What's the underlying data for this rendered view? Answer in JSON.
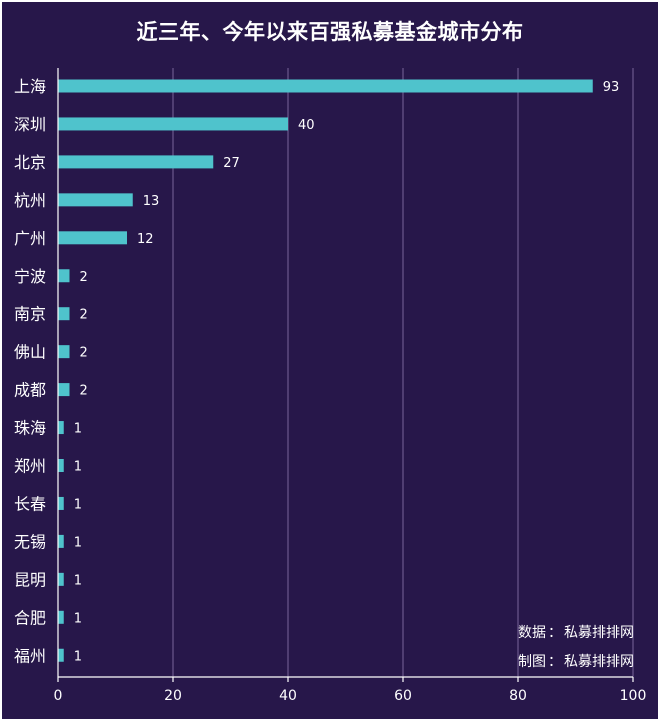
{
  "chart_data": {
    "type": "bar",
    "orientation": "horizontal",
    "title": "近三年、今年以来百强私募基金城市分布",
    "categories": [
      "上海",
      "深圳",
      "北京",
      "杭州",
      "广州",
      "宁波",
      "南京",
      "佛山",
      "成都",
      "珠海",
      "郑州",
      "长春",
      "无锡",
      "昆明",
      "合肥",
      "福州"
    ],
    "values": [
      93,
      40,
      27,
      13,
      12,
      2,
      2,
      2,
      2,
      1,
      1,
      1,
      1,
      1,
      1,
      1
    ],
    "xlim": [
      0,
      100
    ],
    "xticks": [
      0,
      20,
      40,
      60,
      80,
      100
    ],
    "grid": true,
    "legend": "none",
    "xlabel": "",
    "ylabel": "",
    "bar_color": "#4fc3cc",
    "background_color": "#27174a",
    "grid_color": "#5e4c80"
  },
  "credits": {
    "source_label": "数据",
    "source_value": "私募排排网",
    "maker_label": "制图",
    "maker_value": "私募排排网",
    "separator": "："
  }
}
